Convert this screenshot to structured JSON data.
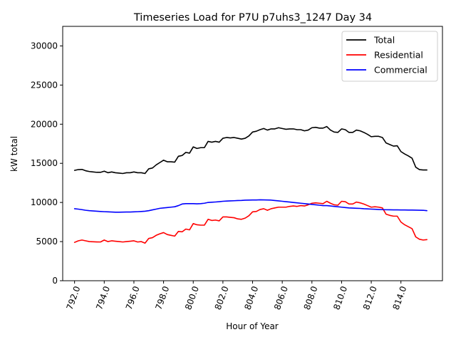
{
  "chart_data": {
    "type": "line",
    "title": "Timeseries Load for P7U p7uhs3_1247  Day 34",
    "xlabel": "Hour of Year",
    "ylabel": "kW total",
    "xlim": [
      791.2,
      816.8
    ],
    "ylim": [
      0,
      32500
    ],
    "xticks": [
      792,
      794,
      796,
      798,
      800,
      802,
      804,
      806,
      808,
      810,
      812,
      814
    ],
    "xtick_labels": [
      "792.0",
      "794.0",
      "796.0",
      "798.0",
      "800.0",
      "802.0",
      "804.0",
      "806.0",
      "808.0",
      "810.0",
      "812.0",
      "814.0"
    ],
    "yticks": [
      0,
      5000,
      10000,
      15000,
      20000,
      25000,
      30000
    ],
    "ytick_labels": [
      "0",
      "5000",
      "10000",
      "15000",
      "20000",
      "25000",
      "30000"
    ],
    "legend_position": "top-right",
    "x_start": 792,
    "x_step": 0.25,
    "series": [
      {
        "name": "Total",
        "color": "#000000",
        "values": [
          14100,
          14200,
          14220,
          14050,
          13950,
          13900,
          13850,
          13850,
          14000,
          13800,
          13900,
          13800,
          13750,
          13700,
          13800,
          13800,
          13900,
          13800,
          13800,
          13700,
          14300,
          14400,
          14800,
          15100,
          15400,
          15200,
          15200,
          15150,
          15900,
          16000,
          16400,
          16300,
          17100,
          16900,
          17000,
          17000,
          17800,
          17700,
          17800,
          17700,
          18200,
          18300,
          18250,
          18300,
          18200,
          18100,
          18200,
          18500,
          19000,
          19100,
          19300,
          19450,
          19250,
          19400,
          19400,
          19550,
          19450,
          19350,
          19400,
          19400,
          19300,
          19300,
          19150,
          19250,
          19550,
          19600,
          19500,
          19500,
          19700,
          19250,
          19000,
          18950,
          19400,
          19300,
          18950,
          18950,
          19250,
          19150,
          18950,
          18700,
          18400,
          18450,
          18450,
          18300,
          17600,
          17400,
          17200,
          17250,
          16500,
          16200,
          15950,
          15650,
          14500,
          14200,
          14150,
          14150
        ]
      },
      {
        "name": "Residential",
        "color": "#ff0000",
        "values": [
          4900,
          5100,
          5200,
          5100,
          5000,
          4980,
          4960,
          4950,
          5200,
          5000,
          5100,
          5050,
          5000,
          4950,
          5000,
          5050,
          5100,
          4950,
          5000,
          4800,
          5400,
          5500,
          5800,
          6000,
          6150,
          5900,
          5800,
          5700,
          6300,
          6250,
          6600,
          6500,
          7300,
          7150,
          7100,
          7100,
          7850,
          7700,
          7750,
          7650,
          8150,
          8150,
          8100,
          8050,
          7900,
          7850,
          8000,
          8300,
          8800,
          8850,
          9100,
          9200,
          9000,
          9200,
          9300,
          9400,
          9400,
          9400,
          9500,
          9550,
          9500,
          9600,
          9550,
          9700,
          9900,
          9950,
          9900,
          9850,
          10150,
          9900,
          9700,
          9650,
          10150,
          10100,
          9800,
          9800,
          10050,
          9950,
          9800,
          9600,
          9400,
          9450,
          9400,
          9300,
          8500,
          8350,
          8250,
          8250,
          7500,
          7150,
          6900,
          6650,
          5600,
          5300,
          5200,
          5250
        ]
      },
      {
        "name": "Commercial",
        "color": "#0000ff",
        "values": [
          9200,
          9150,
          9080,
          9000,
          8950,
          8920,
          8880,
          8850,
          8820,
          8800,
          8780,
          8760,
          8760,
          8770,
          8780,
          8780,
          8800,
          8820,
          8850,
          8880,
          8950,
          9050,
          9150,
          9250,
          9300,
          9350,
          9400,
          9450,
          9600,
          9800,
          9850,
          9850,
          9850,
          9830,
          9850,
          9900,
          10000,
          10030,
          10060,
          10100,
          10150,
          10180,
          10200,
          10220,
          10250,
          10260,
          10290,
          10300,
          10320,
          10320,
          10340,
          10330,
          10320,
          10300,
          10250,
          10200,
          10150,
          10100,
          10050,
          10000,
          9950,
          9900,
          9850,
          9800,
          9750,
          9700,
          9650,
          9600,
          9600,
          9550,
          9500,
          9450,
          9400,
          9350,
          9300,
          9280,
          9260,
          9240,
          9200,
          9180,
          9150,
          9130,
          9100,
          9080,
          9070,
          9060,
          9050,
          9050,
          9040,
          9040,
          9030,
          9030,
          9020,
          9010,
          9000,
          8950
        ]
      }
    ]
  }
}
